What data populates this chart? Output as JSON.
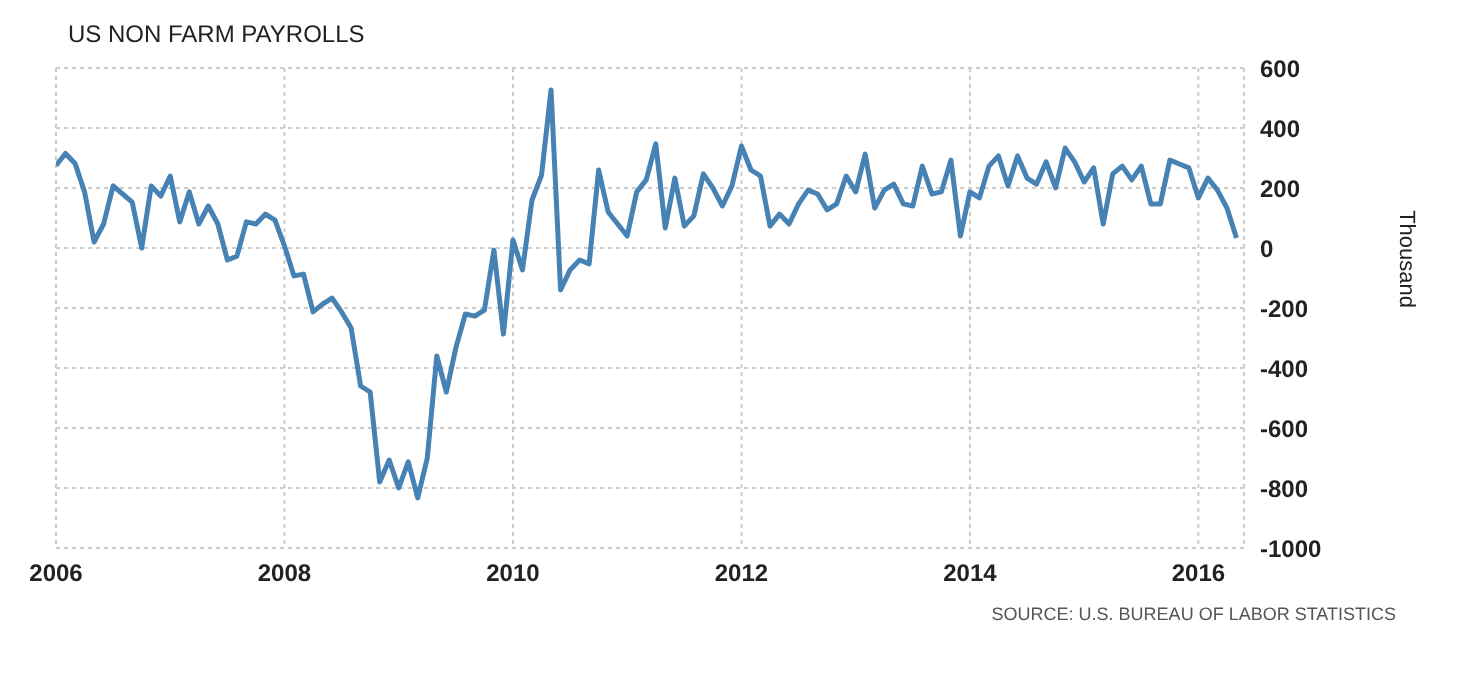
{
  "chart_data": {
    "type": "line",
    "title": "US NON FARM PAYROLLS",
    "ylabel": "Thousand",
    "annotations": [
      "SOURCE: U.S. BUREAU OF LABOR STATISTICS"
    ],
    "x": [
      "2006-01",
      "2006-02",
      "2006-03",
      "2006-04",
      "2006-05",
      "2006-06",
      "2006-07",
      "2006-08",
      "2006-09",
      "2006-10",
      "2006-11",
      "2006-12",
      "2007-01",
      "2007-02",
      "2007-03",
      "2007-04",
      "2007-05",
      "2007-06",
      "2007-07",
      "2007-08",
      "2007-09",
      "2007-10",
      "2007-11",
      "2007-12",
      "2008-01",
      "2008-02",
      "2008-03",
      "2008-04",
      "2008-05",
      "2008-06",
      "2008-07",
      "2008-08",
      "2008-09",
      "2008-10",
      "2008-11",
      "2008-12",
      "2009-01",
      "2009-02",
      "2009-03",
      "2009-04",
      "2009-05",
      "2009-06",
      "2009-07",
      "2009-08",
      "2009-09",
      "2009-10",
      "2009-11",
      "2009-12",
      "2010-01",
      "2010-02",
      "2010-03",
      "2010-04",
      "2010-05",
      "2010-06",
      "2010-07",
      "2010-08",
      "2010-09",
      "2010-10",
      "2010-11",
      "2010-12",
      "2011-01",
      "2011-02",
      "2011-03",
      "2011-04",
      "2011-05",
      "2011-06",
      "2011-07",
      "2011-08",
      "2011-09",
      "2011-10",
      "2011-11",
      "2011-12",
      "2012-01",
      "2012-02",
      "2012-03",
      "2012-04",
      "2012-05",
      "2012-06",
      "2012-07",
      "2012-08",
      "2012-09",
      "2012-10",
      "2012-11",
      "2012-12",
      "2013-01",
      "2013-02",
      "2013-03",
      "2013-04",
      "2013-05",
      "2013-06",
      "2013-07",
      "2013-08",
      "2013-09",
      "2013-10",
      "2013-11",
      "2013-12",
      "2014-01",
      "2014-02",
      "2014-03",
      "2014-04",
      "2014-05",
      "2014-06",
      "2014-07",
      "2014-08",
      "2014-09",
      "2014-10",
      "2014-11",
      "2014-12",
      "2015-01",
      "2015-02",
      "2015-03",
      "2015-04",
      "2015-05",
      "2015-06",
      "2015-07",
      "2015-08",
      "2015-09",
      "2015-10",
      "2015-11",
      "2015-12",
      "2016-01",
      "2016-02",
      "2016-03",
      "2016-04",
      "2016-05"
    ],
    "series": [
      {
        "color": "#4682b4",
        "values": [
          275,
          315,
          282,
          187,
          20,
          80,
          207,
          180,
          153,
          0,
          207,
          173,
          240,
          87,
          187,
          80,
          140,
          80,
          -40,
          -27,
          87,
          80,
          113,
          93,
          7,
          -93,
          -87,
          -213,
          -187,
          -167,
          -213,
          -267,
          -460,
          -480,
          -780,
          -707,
          -800,
          -713,
          -833,
          -700,
          -360,
          -480,
          -333,
          -220,
          -227,
          -207,
          -7,
          -287,
          27,
          -73,
          160,
          243,
          527,
          -140,
          -73,
          -40,
          -53,
          260,
          120,
          80,
          40,
          187,
          227,
          347,
          67,
          233,
          73,
          107,
          247,
          200,
          140,
          207,
          340,
          260,
          240,
          73,
          113,
          80,
          147,
          193,
          180,
          127,
          147,
          240,
          187,
          313,
          133,
          193,
          213,
          147,
          140,
          273,
          180,
          187,
          293,
          40,
          187,
          167,
          273,
          307,
          207,
          307,
          233,
          213,
          287,
          200,
          333,
          287,
          220,
          267,
          80,
          247,
          273,
          227,
          273,
          147,
          147,
          293,
          280,
          267,
          167,
          233,
          193,
          133,
          33
        ]
      }
    ],
    "xlim": [
      "2006-01-01",
      "2016-05-25"
    ],
    "xticks": [
      {
        "value": "2006-01-01",
        "label": "2006"
      },
      {
        "value": "2008-01-01",
        "label": "2008"
      },
      {
        "value": "2010-01-01",
        "label": "2010"
      },
      {
        "value": "2012-01-01",
        "label": "2012"
      },
      {
        "value": "2014-01-01",
        "label": "2014"
      },
      {
        "value": "2016-01-01",
        "label": "2016"
      }
    ],
    "ylim": [
      -1000,
      600
    ],
    "yticks": [
      -1000,
      -800,
      -600,
      -400,
      -200,
      0,
      200,
      400,
      600
    ],
    "grid": true,
    "legend": false,
    "marker": "none",
    "line_style": "solid"
  }
}
